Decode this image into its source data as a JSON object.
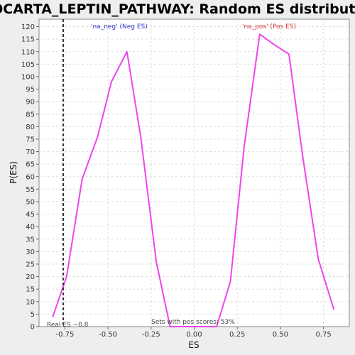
{
  "chart_data": {
    "type": "line",
    "title": "BIOCARTA_LEPTIN_PATHWAY: Random ES distribution",
    "xlabel": "ES",
    "ylabel": "P(ES)",
    "xlim": [
      -0.9,
      0.9
    ],
    "ylim": [
      0,
      123
    ],
    "x_ticks": [
      -0.75,
      -0.5,
      -0.25,
      0.0,
      0.25,
      0.5,
      0.75
    ],
    "x_tick_labels": [
      "-0.75",
      "-0.50",
      "-0.25",
      "0.00",
      "0.25",
      "0.50",
      "0.75"
    ],
    "y_ticks": [
      0,
      5,
      10,
      15,
      20,
      25,
      30,
      35,
      40,
      45,
      50,
      55,
      60,
      65,
      70,
      75,
      80,
      85,
      90,
      95,
      100,
      105,
      110,
      115,
      120
    ],
    "grid": true,
    "series": [
      {
        "name": "'na_neg' (Neg ES)",
        "color": "#ee44ee",
        "x": [
          -0.82,
          -0.74,
          -0.65,
          -0.56,
          -0.48,
          -0.39,
          -0.31,
          -0.22,
          -0.14
        ],
        "y": [
          4,
          20,
          59,
          76,
          98,
          110,
          76,
          26,
          0
        ]
      },
      {
        "name": "'na_pos' (Pos ES)",
        "color": "#ee44ee",
        "x": [
          -0.14,
          0.13,
          0.21,
          0.29,
          0.38,
          0.46,
          0.55,
          0.63,
          0.72,
          0.81
        ],
        "y": [
          0,
          0,
          18,
          72,
          117,
          113,
          109,
          68,
          27,
          7
        ]
      }
    ],
    "real_es_line": {
      "x": -0.76,
      "color": "#333333"
    },
    "annotations": {
      "neg_label": "'na_neg' (Neg ES)",
      "neg_color": "#3333cc",
      "pos_label": "'na_pos' (Pos ES)",
      "pos_color": "#dd3333",
      "real_es_label": "Real ES −0.8",
      "sets_label": "Sets with pos scores: 53%"
    }
  }
}
